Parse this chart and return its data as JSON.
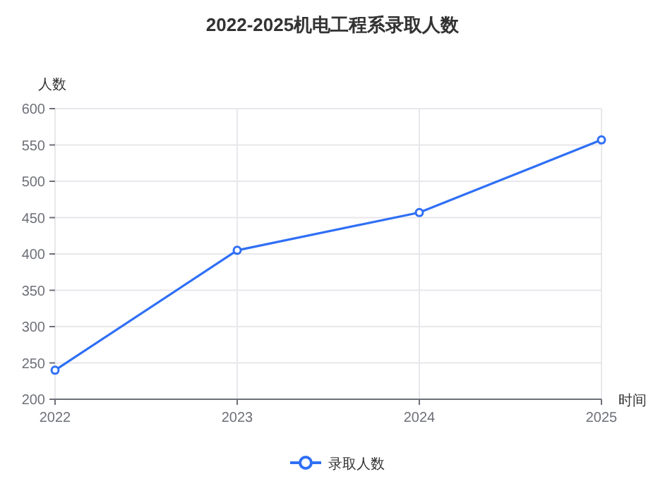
{
  "chart_data": {
    "type": "line",
    "title": "2022-2025机电工程系录取人数",
    "xlabel": "时间",
    "ylabel": "人数",
    "categories": [
      "2022",
      "2023",
      "2024",
      "2025"
    ],
    "series": [
      {
        "name": "录取人数",
        "color": "#2f6ff5",
        "values": [
          240,
          405,
          457,
          557
        ]
      }
    ],
    "ylim": [
      200,
      600
    ],
    "yticks": [
      200,
      250,
      300,
      350,
      400,
      450,
      500,
      550,
      600
    ],
    "grid": true,
    "legend": "bottom",
    "marker": "circle",
    "line_style": "solid"
  }
}
